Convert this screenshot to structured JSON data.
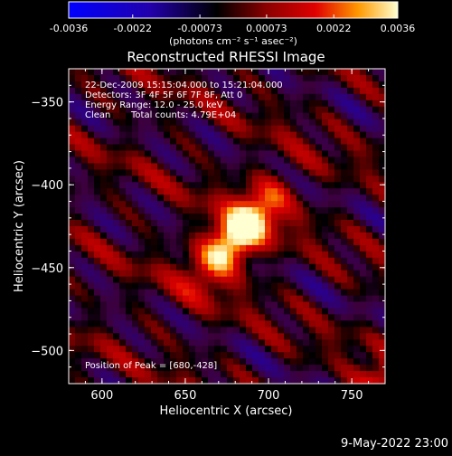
{
  "chart_data": {
    "type": "heatmap",
    "title": "Reconstructed RHESSI Image",
    "xlabel": "Heliocentric X (arcsec)",
    "ylabel": "Heliocentric Y (arcsec)",
    "xlim": [
      580,
      770
    ],
    "ylim": [
      -520,
      -330
    ],
    "xticks": [
      600,
      650,
      700,
      750
    ],
    "yticks": [
      -350,
      -400,
      -450,
      -500
    ],
    "colorbar": {
      "ticks": [
        -0.0036,
        -0.0022,
        -0.00073,
        0.00073,
        0.0022,
        0.0036
      ],
      "tick_labels": [
        "-0.0036",
        "-0.0022",
        "-0.00073",
        "0.00073",
        "0.0022",
        "0.0036"
      ],
      "unit_label": "(photons cm⁻² s⁻¹ asec⁻²)",
      "range": [
        -0.0036,
        0.0036
      ]
    },
    "annotations": {
      "time": "22-Dec-2009 15:15:04.000 to 15:21:04.000",
      "detectors": "Detectors: 3F 4F 5F 6F 7F 8F, Att 0",
      "energy": "Energy Range: 12.0 - 25.0 keV",
      "method": "Clean",
      "counts": "Total counts: 4.79E+04",
      "peak": "Position of Peak = [680,-428]"
    },
    "peak": {
      "x": 680,
      "y": -428,
      "value": 0.0036
    }
  },
  "footer": {
    "date": "9-May-2022 23:00"
  }
}
